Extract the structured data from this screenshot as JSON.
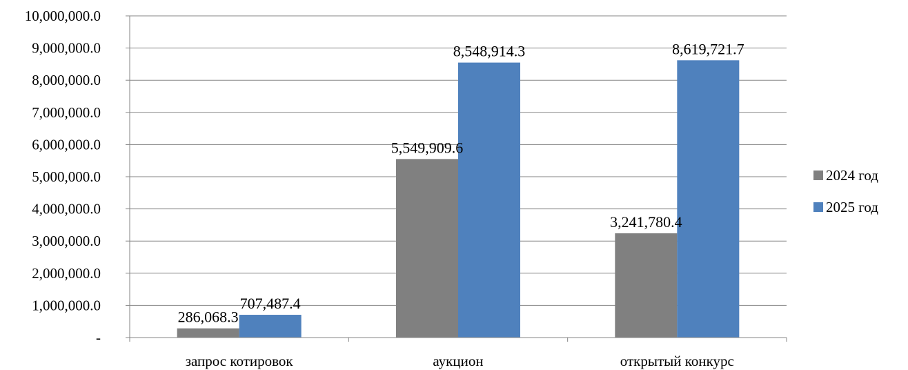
{
  "chart_data": {
    "type": "bar",
    "title": "",
    "xlabel": "",
    "ylabel": "",
    "categories": [
      "запрос котировок",
      "аукцион",
      "открытый конкурс"
    ],
    "series": [
      {
        "name": "2024 год",
        "color": "#808080",
        "values": [
          286068.3,
          5549909.6,
          3241780.4
        ],
        "labels": [
          "286,068.3",
          "5,549,909.6",
          "3,241,780.4"
        ]
      },
      {
        "name": "2025 год",
        "color": "#4f81bd",
        "values": [
          707487.4,
          8548914.3,
          8619721.7
        ],
        "labels": [
          "707,487.4",
          "8,548,914.3",
          "8,619,721.7"
        ]
      }
    ],
    "ylim": [
      0,
      10000000
    ],
    "yticks": [
      0,
      1000000,
      2000000,
      3000000,
      4000000,
      5000000,
      6000000,
      7000000,
      8000000,
      9000000,
      10000000
    ],
    "ytick_labels": [
      "-",
      "1,000,000.0",
      "2,000,000.0",
      "3,000,000.0",
      "4,000,000.0",
      "5,000,000.0",
      "6,000,000.0",
      "7,000,000.0",
      "8,000,000.0",
      "9,000,000.0",
      "10,000,000.0"
    ],
    "grid": true,
    "legend_position": "right"
  }
}
